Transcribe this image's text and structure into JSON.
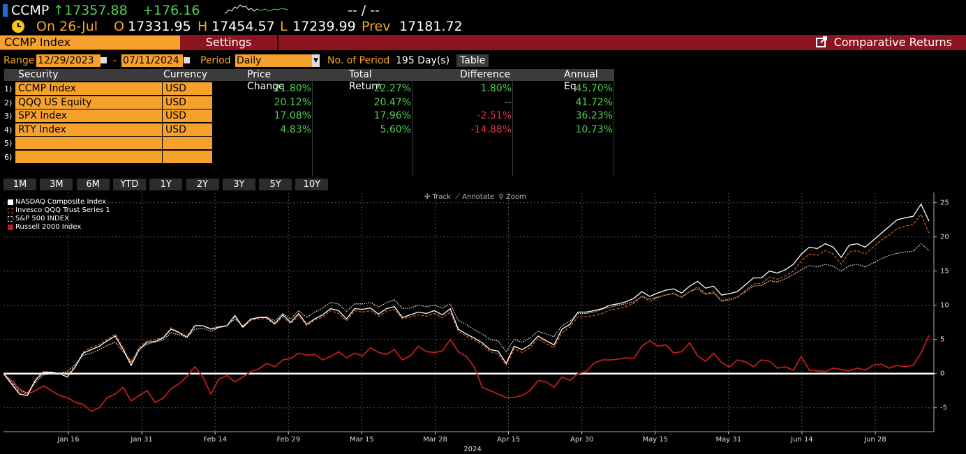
{
  "ticker": {
    "symbol": "CCMP",
    "arrow": "↑",
    "last": "17357.88",
    "change": "+176.16",
    "bid_ask": "-- / --",
    "date_label": "On 26-Jul",
    "open_label": "O",
    "open": "17331.95",
    "high_label": "H",
    "high": "17454.57",
    "low_label": "L",
    "low": "17239.99",
    "prev_label": "Prev",
    "prev": "17181.72"
  },
  "toolbar": {
    "title": "CCMP Index",
    "settings": "Settings",
    "comparative_returns": "Comparative Returns"
  },
  "range": {
    "label": "Range",
    "start": "12/29/2023",
    "dash": "-",
    "end": "07/11/2024",
    "period_label": "Period",
    "period": "Daily",
    "num_period_label": "No. of Period",
    "num_period_value": "195 Day(s)",
    "table_button": "Table"
  },
  "table": {
    "headers": [
      "Security",
      "Currency",
      "Price Change",
      "Total Return",
      "Difference",
      "Annual Eq"
    ],
    "rows": [
      {
        "num": "1)",
        "security": "CCMP Index",
        "currency": "USD",
        "price_change": "21.80%",
        "total_return": "22.27%",
        "difference": "1.80%",
        "annual_eq": "45.70%"
      },
      {
        "num": "2)",
        "security": "QQQ US Equity",
        "currency": "USD",
        "price_change": "20.12%",
        "total_return": "20.47%",
        "difference": "--",
        "annual_eq": "41.72%"
      },
      {
        "num": "3)",
        "security": "SPX Index",
        "currency": "USD",
        "price_change": "17.08%",
        "total_return": "17.96%",
        "difference": "-2.51%",
        "annual_eq": "36.23%"
      },
      {
        "num": "4)",
        "security": "RTY Index",
        "currency": "USD",
        "price_change": "4.83%",
        "total_return": "5.60%",
        "difference": "-14.88%",
        "annual_eq": "10.73%"
      },
      {
        "num": "5)",
        "security": "",
        "currency": "",
        "price_change": "",
        "total_return": "",
        "difference": "",
        "annual_eq": ""
      },
      {
        "num": "6)",
        "security": "",
        "currency": "",
        "price_change": "",
        "total_return": "",
        "difference": "",
        "annual_eq": ""
      }
    ]
  },
  "periods": [
    "1M",
    "3M",
    "6M",
    "YTD",
    "1Y",
    "2Y",
    "3Y",
    "5Y",
    "10Y"
  ],
  "tools": {
    "track": "Track",
    "annotate": "Annotate",
    "zoom": "Zoom"
  },
  "colors": {
    "orange": "#f5a12b",
    "green": "#4fd14f",
    "red": "#e8343c",
    "bar_red": "#8c1420"
  },
  "chart_data": {
    "type": "line",
    "year_label": "2024",
    "x_ticks": [
      "Jan 16",
      "Jan 31",
      "Feb 14",
      "Feb 29",
      "Mar 15",
      "Mar 28",
      "Apr 15",
      "Apr 30",
      "May 15",
      "May 31",
      "Jun 14",
      "Jun 28"
    ],
    "y_ticks": [
      -5,
      0,
      5,
      10,
      15,
      20,
      25
    ],
    "ylim": [
      -8.5,
      26.5
    ],
    "grid": true,
    "legend_position": "top-left",
    "series": [
      {
        "name": "NASDAQ Composite Index",
        "color": "#ffffff",
        "style": "solid",
        "values": [
          0,
          -1.5,
          -3,
          -3.2,
          -1,
          0.2,
          0.2,
          0,
          -0.5,
          1,
          3,
          3.5,
          4,
          4.8,
          5.5,
          3.5,
          1.2,
          3.5,
          4.6,
          4.7,
          5.2,
          6.5,
          6,
          5.3,
          7,
          7,
          6.5,
          6.8,
          7,
          8.5,
          6.8,
          8,
          8.2,
          8.2,
          7.3,
          8.6,
          7.5,
          8.8,
          7.2,
          8,
          8.6,
          9.5,
          9.2,
          8,
          9.5,
          9.4,
          9.6,
          8.7,
          9.5,
          9.8,
          8.2,
          8.6,
          9,
          8.8,
          9.2,
          8.6,
          9.5,
          6.5,
          5.8,
          5.2,
          4.5,
          3.5,
          3.3,
          1.5,
          4,
          3.5,
          4.2,
          5.5,
          4.8,
          4.2,
          6.5,
          7.2,
          9,
          9,
          9.2,
          9.5,
          10,
          10.2,
          10.5,
          11,
          12,
          11.3,
          11.8,
          12.2,
          12.4,
          11.8,
          12.8,
          13.5,
          12.5,
          12.8,
          11.5,
          11.7,
          12,
          13,
          14,
          14,
          15,
          14.7,
          15.2,
          16,
          17.5,
          18.5,
          18.3,
          19,
          18.5,
          17,
          18.8,
          19,
          18.5,
          19.5,
          20.5,
          21.5,
          22.5,
          22.8,
          23,
          24.8,
          22.3
        ]
      },
      {
        "name": "Invesco QQQ Trust Series 1",
        "color": "#c4561e",
        "style": "dashed",
        "values": [
          0,
          -1.4,
          -2.8,
          -3,
          -0.8,
          0.3,
          0.2,
          0,
          -0.2,
          1.2,
          3.2,
          3.8,
          4.3,
          5,
          5.8,
          3.8,
          1.5,
          3.8,
          4.8,
          5,
          5.3,
          6.7,
          6.1,
          5.5,
          7.1,
          7,
          6.6,
          6.9,
          7,
          8.3,
          6.7,
          7.8,
          8,
          8,
          7.2,
          8.3,
          7.3,
          8.5,
          7,
          7.8,
          8.3,
          9.2,
          8.8,
          7.7,
          9.2,
          9,
          9.2,
          8.4,
          9.1,
          9.4,
          8,
          8.3,
          8.6,
          8.4,
          8.8,
          8.2,
          9,
          6.2,
          5.5,
          4.9,
          4.2,
          3.2,
          2.9,
          1.2,
          3.6,
          3.1,
          3.8,
          5.1,
          4.4,
          3.8,
          6,
          6.8,
          8.3,
          8.3,
          8.5,
          8.8,
          9.3,
          9.5,
          9.8,
          10.3,
          11.3,
          10.6,
          11.1,
          11.5,
          11.7,
          11.1,
          12,
          12.7,
          11.7,
          12,
          10.7,
          10.9,
          11.2,
          12.2,
          13.1,
          13.2,
          14.1,
          13.8,
          14.3,
          15,
          16.5,
          17.5,
          17.3,
          18,
          17.5,
          16,
          17.8,
          18,
          17.5,
          18.5,
          19.5,
          20.3,
          21.2,
          21.6,
          21.8,
          23.3,
          20.5
        ]
      },
      {
        "name": "S&P 500 INDEX",
        "color": "#dddddd",
        "style": "dotted",
        "values": [
          0,
          -1.2,
          -2.5,
          -2.8,
          -1.3,
          -0.2,
          0,
          0.1,
          0.3,
          1.4,
          2.7,
          3,
          3.5,
          4.1,
          4.6,
          3.2,
          1.8,
          3.6,
          4.3,
          4.6,
          4.9,
          6,
          5.7,
          5.3,
          6.5,
          6.6,
          6.2,
          6.7,
          7,
          8,
          7,
          7.9,
          8.2,
          8.3,
          7.7,
          8.8,
          8,
          9.2,
          8.2,
          9,
          9.6,
          10.4,
          10.2,
          9.1,
          10.2,
          10.2,
          10.4,
          9.7,
          10.4,
          10.8,
          9.5,
          9.6,
          10,
          9.8,
          10,
          9.6,
          10.2,
          7.8,
          7.2,
          6.4,
          5.8,
          5,
          4.8,
          3.2,
          5,
          4.6,
          5.2,
          6.2,
          5.8,
          5.4,
          7,
          7.7,
          8.8,
          8.8,
          9,
          9.4,
          9.7,
          10,
          10.2,
          10.5,
          11.3,
          10.9,
          11.2,
          11.5,
          11.7,
          11.2,
          12,
          12.4,
          11.6,
          11.8,
          10.6,
          10.8,
          11.2,
          12,
          12.8,
          12.9,
          13.6,
          13.4,
          13.9,
          14.5,
          15.2,
          15.8,
          15.6,
          16,
          15.7,
          15,
          15.8,
          16,
          15.6,
          16.2,
          16.8,
          17.3,
          17.6,
          17.8,
          17.9,
          19,
          18
        ]
      },
      {
        "name": "Russell 2000 Index",
        "color": "#c11c1c",
        "style": "solid",
        "values": [
          0,
          -1,
          -2.2,
          -3,
          -2.5,
          -1.8,
          -2.5,
          -3.2,
          -3.5,
          -4.2,
          -4.5,
          -5.5,
          -5,
          -3.5,
          -3,
          -2,
          -4,
          -3.2,
          -2.5,
          -4.2,
          -3.6,
          -2.2,
          -1.5,
          -0.4,
          1,
          -0.5,
          -3,
          -0.8,
          -0.3,
          -1.2,
          -0.5,
          0.3,
          0.7,
          1.5,
          1,
          2,
          2.2,
          3,
          2.7,
          2.8,
          2,
          2.5,
          3.2,
          2.3,
          3,
          2.6,
          3.8,
          3.1,
          2.8,
          3.5,
          2,
          2.6,
          4,
          3.2,
          3.1,
          3.3,
          5,
          3.2,
          2.5,
          1,
          -2,
          -2.5,
          -3,
          -3.5,
          -3.5,
          -3.2,
          -2.5,
          -1,
          -1.2,
          -2,
          -0.5,
          -1,
          0,
          0.3,
          1.5,
          2,
          2,
          2.1,
          2.3,
          2.2,
          4,
          4.8,
          4,
          4.2,
          3,
          3.2,
          4.5,
          2.6,
          1.8,
          3,
          1.6,
          1,
          2,
          1.7,
          1,
          2,
          1.8,
          0.8,
          1,
          0.5,
          2.5,
          0.5,
          0.4,
          0.3,
          0.8,
          0.6,
          0.4,
          0.8,
          0.5,
          1.2,
          1.4,
          0.8,
          1.2,
          1,
          1.2,
          3,
          5.6
        ]
      }
    ]
  }
}
